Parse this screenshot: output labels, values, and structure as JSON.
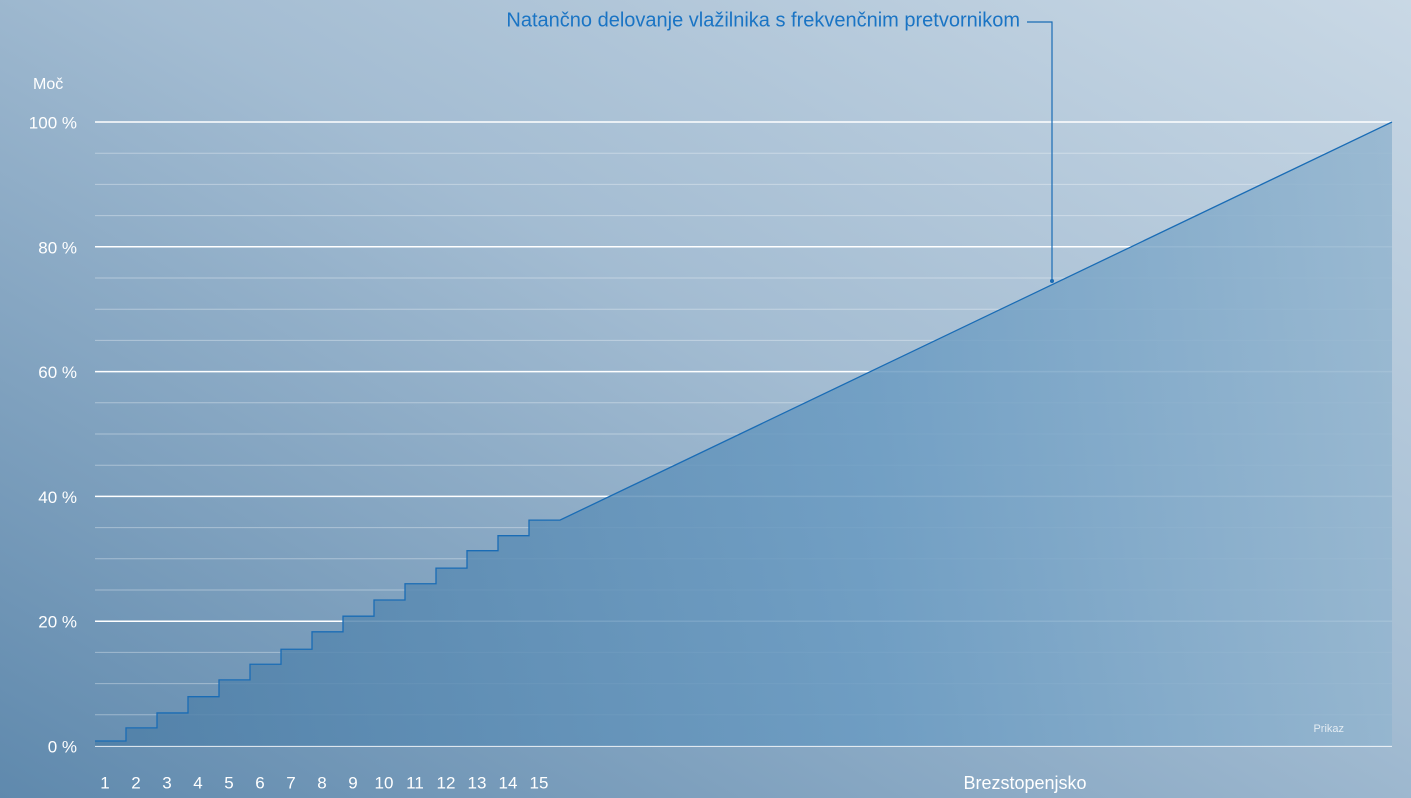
{
  "chart_data": {
    "type": "step",
    "title": "Natančno delovanje vlažilnika s frekvenčnim pretvornikom",
    "y_label": "Moč",
    "continuous_label": "Brezstopenjsko",
    "note": "Prikaz",
    "categories": [
      "1",
      "2",
      "3",
      "4",
      "5",
      "6",
      "7",
      "8",
      "9",
      "10",
      "11",
      "12",
      "13",
      "14",
      "15"
    ],
    "values": [
      0.8,
      2.9,
      5.3,
      7.9,
      10.6,
      13.1,
      15.5,
      18.3,
      20.8,
      23.4,
      26.0,
      28.5,
      31.3,
      33.7,
      36.2
    ],
    "end_value": 100,
    "color": "#1a6cb5",
    "ylim": [
      0,
      100
    ],
    "yticks": [
      {
        "value": 0,
        "label": "0 %"
      },
      {
        "value": 20,
        "label": "20 %"
      },
      {
        "value": 40,
        "label": "40 %"
      },
      {
        "value": 60,
        "label": "60 %"
      },
      {
        "value": 80,
        "label": "80 %"
      },
      {
        "value": 100,
        "label": "100 %"
      }
    ],
    "minor_yticks": [
      5,
      10,
      15,
      25,
      30,
      35,
      45,
      50,
      55,
      65,
      70,
      75,
      85,
      90,
      95
    ],
    "grid": true
  }
}
